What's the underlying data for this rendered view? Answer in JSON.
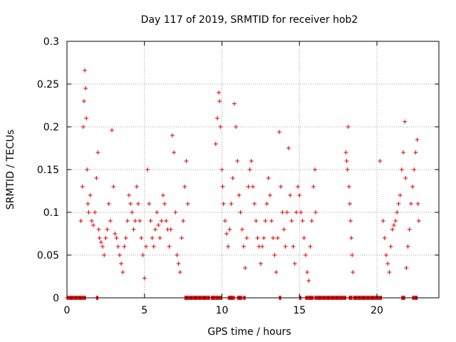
{
  "chart_data": {
    "type": "scatter",
    "title": "Day 117 of 2019, SRMTID for receiver hob2",
    "xlabel": "GPS time / hours",
    "ylabel": "SRMTID / TECUs",
    "xlim": [
      0,
      24
    ],
    "ylim": [
      0,
      0.3
    ],
    "xticks": [
      0,
      5,
      10,
      15,
      20
    ],
    "yticks": [
      0,
      0.05,
      0.1,
      0.15,
      0.2,
      0.25,
      0.3
    ],
    "xtick_labels": [
      "0",
      "5",
      "10",
      "15",
      "20"
    ],
    "ytick_labels": [
      "0",
      "0.05",
      "0.1",
      "0.15",
      "0.2",
      "0.25",
      "0.3"
    ],
    "grid": true,
    "marker": "+",
    "color": "#dd0000",
    "series": [
      {
        "name": "SRMTID",
        "points": [
          [
            0.9,
            0.09
          ],
          [
            1.0,
            0.13
          ],
          [
            1.05,
            0.2
          ],
          [
            1.1,
            0.23
          ],
          [
            1.15,
            0.266
          ],
          [
            1.2,
            0.245
          ],
          [
            1.25,
            0.21
          ],
          [
            1.3,
            0.15
          ],
          [
            1.35,
            0.11
          ],
          [
            1.4,
            0.1
          ],
          [
            1.5,
            0.12
          ],
          [
            1.6,
            0.09
          ],
          [
            1.7,
            0.085
          ],
          [
            1.8,
            0.1
          ],
          [
            1.9,
            0.14
          ],
          [
            2.0,
            0.17
          ],
          [
            2.05,
            0.08
          ],
          [
            2.1,
            0.07
          ],
          [
            2.2,
            0.065
          ],
          [
            2.3,
            0.06
          ],
          [
            2.4,
            0.05
          ],
          [
            2.5,
            0.07
          ],
          [
            2.6,
            0.08
          ],
          [
            2.7,
            0.11
          ],
          [
            2.8,
            0.09
          ],
          [
            2.9,
            0.196
          ],
          [
            3.0,
            0.13
          ],
          [
            3.1,
            0.075
          ],
          [
            3.2,
            0.07
          ],
          [
            3.3,
            0.06
          ],
          [
            3.4,
            0.05
          ],
          [
            3.5,
            0.04
          ],
          [
            3.6,
            0.03
          ],
          [
            3.7,
            0.06
          ],
          [
            3.8,
            0.07
          ],
          [
            3.9,
            0.09
          ],
          [
            4.0,
            0.12
          ],
          [
            4.1,
            0.11
          ],
          [
            4.2,
            0.1
          ],
          [
            4.3,
            0.08
          ],
          [
            4.4,
            0.09
          ],
          [
            4.5,
            0.13
          ],
          [
            4.6,
            0.11
          ],
          [
            4.7,
            0.09
          ],
          [
            4.8,
            0.07
          ],
          [
            4.9,
            0.05
          ],
          [
            5.0,
            0.023
          ],
          [
            5.1,
            0.06
          ],
          [
            5.2,
            0.15
          ],
          [
            5.3,
            0.11
          ],
          [
            5.4,
            0.09
          ],
          [
            5.5,
            0.07
          ],
          [
            5.6,
            0.06
          ],
          [
            5.7,
            0.08
          ],
          [
            5.8,
            0.1
          ],
          [
            5.9,
            0.085
          ],
          [
            6.0,
            0.07
          ],
          [
            6.1,
            0.09
          ],
          [
            6.2,
            0.12
          ],
          [
            6.3,
            0.11
          ],
          [
            6.4,
            0.09
          ],
          [
            6.5,
            0.08
          ],
          [
            6.6,
            0.06
          ],
          [
            6.7,
            0.08
          ],
          [
            6.8,
            0.19
          ],
          [
            6.9,
            0.17
          ],
          [
            7.0,
            0.1
          ],
          [
            7.1,
            0.05
          ],
          [
            7.2,
            0.04
          ],
          [
            7.3,
            0.03
          ],
          [
            7.4,
            0.07
          ],
          [
            7.5,
            0.09
          ],
          [
            7.6,
            0.13
          ],
          [
            7.7,
            0.16
          ],
          [
            7.8,
            0.11
          ],
          [
            9.6,
            0.18
          ],
          [
            9.7,
            0.21
          ],
          [
            9.8,
            0.24
          ],
          [
            9.85,
            0.23
          ],
          [
            9.9,
            0.2
          ],
          [
            10.0,
            0.15
          ],
          [
            10.05,
            0.13
          ],
          [
            10.1,
            0.11
          ],
          [
            10.2,
            0.09
          ],
          [
            10.3,
            0.075
          ],
          [
            10.4,
            0.06
          ],
          [
            10.5,
            0.08
          ],
          [
            10.6,
            0.11
          ],
          [
            10.7,
            0.14
          ],
          [
            10.8,
            0.227
          ],
          [
            10.9,
            0.2
          ],
          [
            11.0,
            0.16
          ],
          [
            11.1,
            0.12
          ],
          [
            11.2,
            0.1
          ],
          [
            11.3,
            0.08
          ],
          [
            11.4,
            0.06
          ],
          [
            11.5,
            0.035
          ],
          [
            11.6,
            0.07
          ],
          [
            11.7,
            0.13
          ],
          [
            11.8,
            0.15
          ],
          [
            11.9,
            0.16
          ],
          [
            12.0,
            0.13
          ],
          [
            12.1,
            0.11
          ],
          [
            12.2,
            0.09
          ],
          [
            12.3,
            0.07
          ],
          [
            12.4,
            0.06
          ],
          [
            12.5,
            0.04
          ],
          [
            12.6,
            0.06
          ],
          [
            12.7,
            0.07
          ],
          [
            12.8,
            0.09
          ],
          [
            12.9,
            0.11
          ],
          [
            13.0,
            0.14
          ],
          [
            13.1,
            0.12
          ],
          [
            13.2,
            0.09
          ],
          [
            13.3,
            0.07
          ],
          [
            13.4,
            0.05
          ],
          [
            13.5,
            0.03
          ],
          [
            13.6,
            0.07
          ],
          [
            13.7,
            0.194
          ],
          [
            13.8,
            0.13
          ],
          [
            13.9,
            0.1
          ],
          [
            14.0,
            0.08
          ],
          [
            14.1,
            0.06
          ],
          [
            14.2,
            0.1
          ],
          [
            14.3,
            0.175
          ],
          [
            14.4,
            0.12
          ],
          [
            14.5,
            0.09
          ],
          [
            14.6,
            0.06
          ],
          [
            14.7,
            0.04
          ],
          [
            14.8,
            0.1
          ],
          [
            14.9,
            0.13
          ],
          [
            15.0,
            0.12
          ],
          [
            15.1,
            0.1
          ],
          [
            15.2,
            0.09
          ],
          [
            15.3,
            0.07
          ],
          [
            15.4,
            0.05
          ],
          [
            15.5,
            0.03
          ],
          [
            15.6,
            0.02
          ],
          [
            15.7,
            0.06
          ],
          [
            15.8,
            0.09
          ],
          [
            15.9,
            0.13
          ],
          [
            16.0,
            0.15
          ],
          [
            16.05,
            0.1
          ],
          [
            18.0,
            0.17
          ],
          [
            18.05,
            0.16
          ],
          [
            18.1,
            0.15
          ],
          [
            18.15,
            0.2
          ],
          [
            18.2,
            0.13
          ],
          [
            18.25,
            0.11
          ],
          [
            18.3,
            0.09
          ],
          [
            18.35,
            0.07
          ],
          [
            18.4,
            0.05
          ],
          [
            18.45,
            0.03
          ],
          [
            20.2,
            0.16
          ],
          [
            20.4,
            0.09
          ],
          [
            20.5,
            0.07
          ],
          [
            20.6,
            0.05
          ],
          [
            20.7,
            0.04
          ],
          [
            20.8,
            0.03
          ],
          [
            20.9,
            0.06
          ],
          [
            21.0,
            0.08
          ],
          [
            21.1,
            0.085
          ],
          [
            21.2,
            0.09
          ],
          [
            21.3,
            0.1
          ],
          [
            21.4,
            0.11
          ],
          [
            21.5,
            0.12
          ],
          [
            21.6,
            0.15
          ],
          [
            21.7,
            0.17
          ],
          [
            21.8,
            0.206
          ],
          [
            21.85,
            0.14
          ],
          [
            21.9,
            0.035
          ],
          [
            22.0,
            0.06
          ],
          [
            22.1,
            0.08
          ],
          [
            22.2,
            0.11
          ],
          [
            22.3,
            0.13
          ],
          [
            22.4,
            0.15
          ],
          [
            22.5,
            0.17
          ],
          [
            22.6,
            0.185
          ],
          [
            22.65,
            0.11
          ],
          [
            22.7,
            0.09
          ]
        ]
      }
    ],
    "zero_runs": [
      [
        0.0,
        1.2
      ],
      [
        1.9,
        2.0
      ],
      [
        7.6,
        9.2
      ],
      [
        9.3,
        10.0
      ],
      [
        10.4,
        10.8
      ],
      [
        11.0,
        11.3
      ],
      [
        11.4,
        11.5
      ],
      [
        13.7,
        13.8
      ],
      [
        15.0,
        15.1
      ],
      [
        15.4,
        15.9
      ],
      [
        16.0,
        18.0
      ],
      [
        18.2,
        18.4
      ],
      [
        18.5,
        20.3
      ],
      [
        21.6,
        21.8
      ],
      [
        22.3,
        22.6
      ]
    ]
  }
}
